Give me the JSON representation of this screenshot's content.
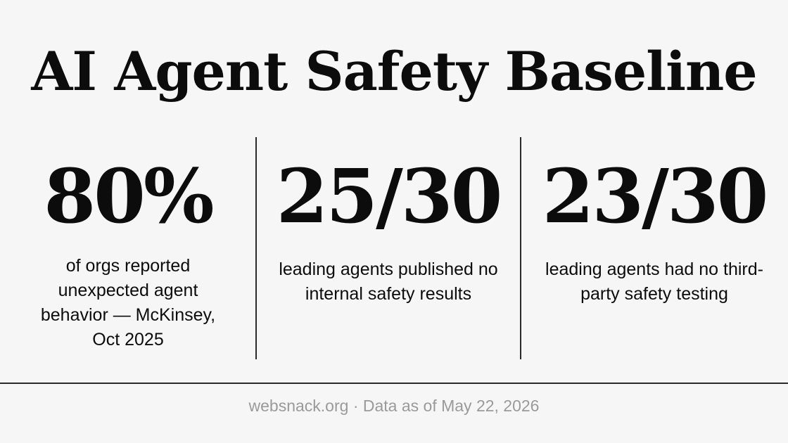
{
  "title": "AI Agent Safety Baseline",
  "stats": [
    {
      "value": "80%",
      "description": "of orgs reported unexpected agent behavior — McKinsey, Oct 2025"
    },
    {
      "value": "25/30",
      "description": "leading agents published no internal safety results"
    },
    {
      "value": "23/30",
      "description": "leading agents had no third-party safety testing"
    }
  ],
  "footer": {
    "site": "websnack.org",
    "separator": "·",
    "data_note": "Data as of May 22, 2026"
  }
}
